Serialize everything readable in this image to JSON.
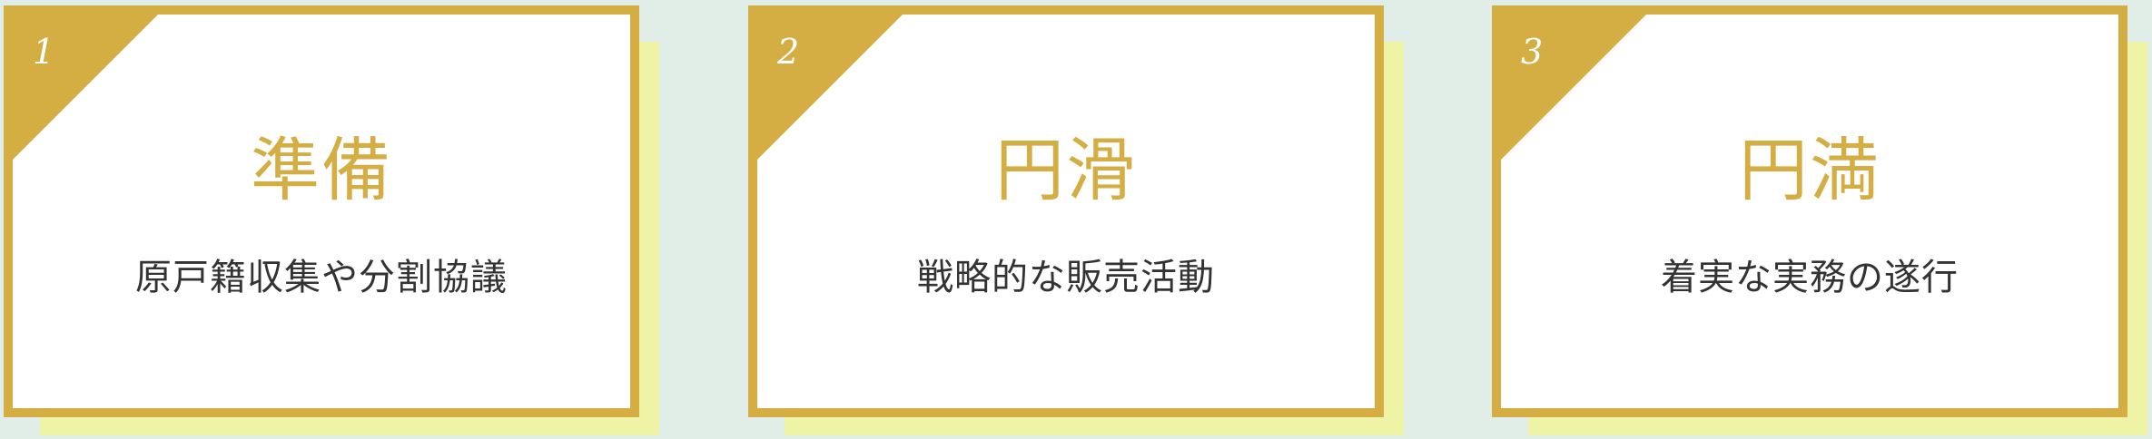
{
  "colors": {
    "page_background": "#e1eee8",
    "accent": "#d4ae43",
    "shadow": "#eef3a6",
    "card_background": "#ffffff",
    "text": "#333333"
  },
  "steps": [
    {
      "number": "1",
      "title": "準備",
      "description": "原戸籍収集や分割協議"
    },
    {
      "number": "2",
      "title": "円滑",
      "description": "戦略的な販売活動"
    },
    {
      "number": "3",
      "title": "円満",
      "description": "着実な実務の遂行"
    }
  ]
}
